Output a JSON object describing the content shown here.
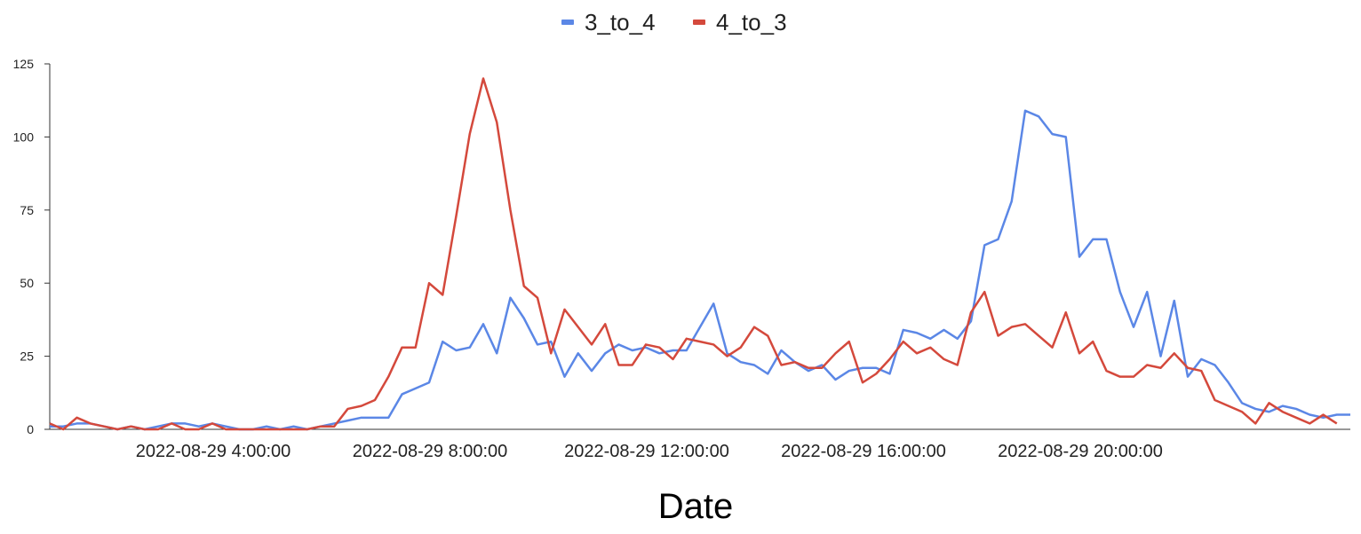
{
  "chart_data": {
    "type": "line",
    "title": "",
    "xlabel": "Date",
    "ylabel": "",
    "ylim": [
      0,
      125
    ],
    "yticks": [
      0,
      25,
      50,
      75,
      100,
      125
    ],
    "x_tick_labels": [
      {
        "label": "2022-08-29 4:00:00",
        "index": 16
      },
      {
        "label": "2022-08-29 8:00:00",
        "index": 32
      },
      {
        "label": "2022-08-29 12:00:00",
        "index": 48
      },
      {
        "label": "2022-08-29 16:00:00",
        "index": 64
      },
      {
        "label": "2022-08-29 20:00:00",
        "index": 80
      }
    ],
    "x_interval": "15 minutes",
    "legend_position": "top",
    "grid": false,
    "series": [
      {
        "name": "3_to_4",
        "color": "#5b87e6",
        "values": [
          1,
          1,
          2,
          2,
          1,
          0,
          1,
          0,
          1,
          2,
          2,
          1,
          2,
          1,
          0,
          0,
          1,
          0,
          1,
          0,
          1,
          2,
          3,
          4,
          4,
          4,
          12,
          14,
          16,
          30,
          27,
          28,
          36,
          26,
          45,
          38,
          29,
          30,
          18,
          26,
          20,
          26,
          29,
          27,
          28,
          26,
          27,
          27,
          35,
          43,
          26,
          23,
          22,
          19,
          27,
          23,
          20,
          22,
          17,
          20,
          21,
          21,
          19,
          34,
          33,
          31,
          34,
          31,
          37,
          63,
          65,
          78,
          109,
          107,
          101,
          100,
          59,
          65,
          65,
          47,
          35,
          47,
          25,
          44,
          18,
          24,
          22,
          16,
          9,
          7,
          6,
          8,
          7,
          5,
          4,
          5,
          5
        ]
      },
      {
        "name": "4_to_3",
        "color": "#d4493c",
        "values": [
          2,
          0,
          4,
          2,
          1,
          0,
          1,
          0,
          0,
          2,
          0,
          0,
          2,
          0,
          0,
          0,
          0,
          0,
          0,
          0,
          1,
          1,
          7,
          8,
          10,
          18,
          28,
          28,
          50,
          46,
          73,
          101,
          120,
          105,
          75,
          49,
          45,
          26,
          41,
          35,
          29,
          36,
          22,
          22,
          29,
          28,
          24,
          31,
          30,
          29,
          25,
          28,
          35,
          32,
          22,
          23,
          21,
          21,
          26,
          30,
          16,
          19,
          24,
          30,
          26,
          28,
          24,
          22,
          40,
          47,
          32,
          35,
          36,
          32,
          28,
          40,
          26,
          30,
          20,
          18,
          18,
          22,
          21,
          26,
          21,
          20,
          10,
          8,
          6,
          2,
          9,
          6,
          4,
          2,
          5,
          2
        ]
      }
    ]
  }
}
